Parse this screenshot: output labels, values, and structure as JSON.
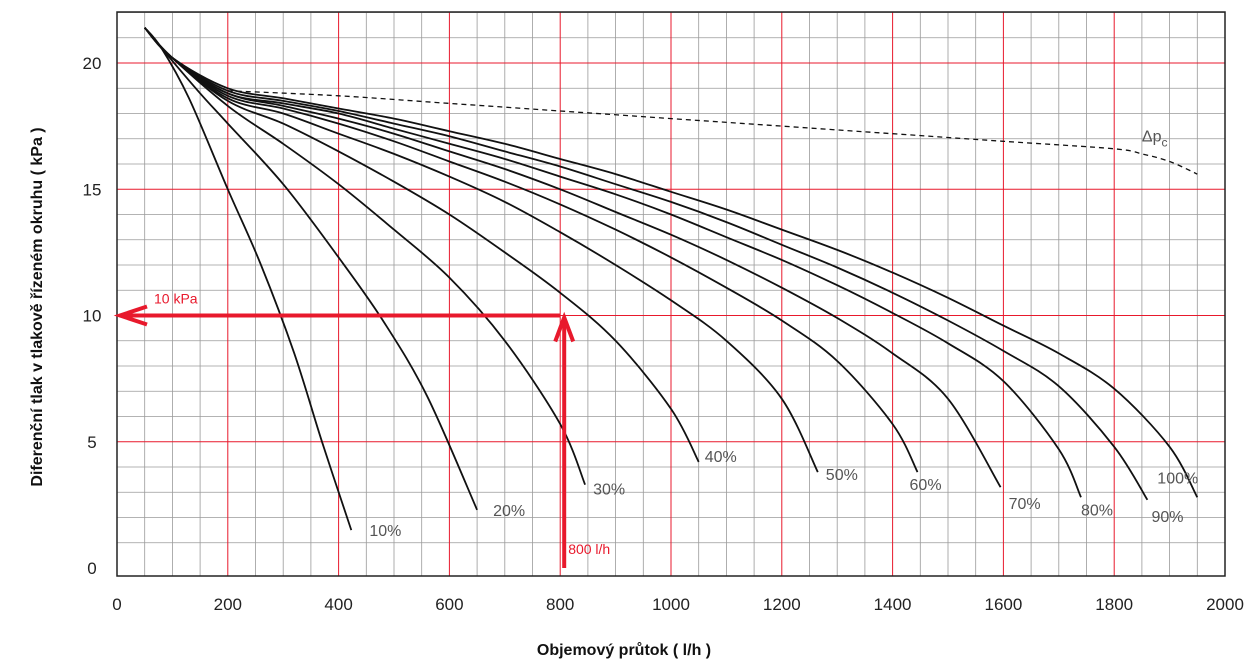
{
  "chart_data": {
    "type": "line",
    "title": "",
    "xlabel": "Objemový průtok ( l/h )",
    "ylabel": "Diferenční tlak v tlakově řízeném okruhu  ( kPa )",
    "xlim": [
      0,
      2000
    ],
    "ylim": [
      0,
      22
    ],
    "x_ticks": [
      "0",
      "200",
      "400",
      "600",
      "800",
      "1000",
      "1200",
      "1400",
      "1600",
      "1800",
      "2000"
    ],
    "y_ticks": [
      "0",
      "5",
      "10",
      "15",
      "20"
    ],
    "grid": true,
    "colors": {
      "curve": "#111111",
      "grid_major": "#e8192c",
      "grid_minor": "#9a9a9a",
      "annotation": "#e8192c"
    },
    "series": [
      {
        "name": "10%",
        "x": [
          50,
          80,
          130,
          200,
          260,
          320,
          370,
          423
        ],
        "y": [
          21.4,
          20.6,
          18.6,
          15.0,
          12.0,
          8.5,
          5.0,
          1.5
        ]
      },
      {
        "name": "20%",
        "x": [
          50,
          80,
          150,
          200,
          300,
          400,
          480,
          560,
          650
        ],
        "y": [
          21.4,
          20.6,
          18.8,
          17.6,
          15.2,
          12.3,
          9.8,
          6.8,
          2.3
        ]
      },
      {
        "name": "30%",
        "x": [
          50,
          90,
          200,
          300,
          400,
          500,
          600,
          700,
          800,
          845
        ],
        "y": [
          21.4,
          20.4,
          18.3,
          16.8,
          15.2,
          13.4,
          11.5,
          9.0,
          5.7,
          3.3
        ]
      },
      {
        "name": "40%",
        "x": [
          50,
          100,
          200,
          300,
          400,
          500,
          600,
          700,
          800,
          900,
          1000,
          1050
        ],
        "y": [
          21.4,
          20.2,
          18.5,
          17.6,
          16.5,
          15.3,
          14.0,
          12.5,
          10.9,
          9.0,
          6.3,
          4.2
        ]
      },
      {
        "name": "50%",
        "x": [
          50,
          100,
          200,
          300,
          400,
          500,
          600,
          700,
          800,
          900,
          1000,
          1100,
          1200,
          1265
        ],
        "y": [
          21.4,
          20.2,
          18.6,
          18.0,
          17.2,
          16.4,
          15.5,
          14.5,
          13.3,
          12.0,
          10.6,
          9.0,
          6.7,
          3.8
        ]
      },
      {
        "name": "60%",
        "x": [
          50,
          100,
          200,
          300,
          400,
          500,
          600,
          700,
          800,
          900,
          1000,
          1100,
          1200,
          1300,
          1400,
          1445
        ],
        "y": [
          21.4,
          20.2,
          18.7,
          18.2,
          17.6,
          16.9,
          16.1,
          15.3,
          14.4,
          13.4,
          12.3,
          11.1,
          9.8,
          8.2,
          5.7,
          3.8
        ]
      },
      {
        "name": "70%",
        "x": [
          50,
          100,
          200,
          300,
          400,
          500,
          600,
          700,
          800,
          900,
          1000,
          1100,
          1200,
          1300,
          1400,
          1500,
          1595
        ],
        "y": [
          21.4,
          20.2,
          18.8,
          18.3,
          17.8,
          17.2,
          16.5,
          15.8,
          15.0,
          14.1,
          13.2,
          12.2,
          11.1,
          9.9,
          8.5,
          6.7,
          3.2
        ]
      },
      {
        "name": "80%",
        "x": [
          50,
          100,
          200,
          300,
          400,
          500,
          600,
          700,
          800,
          900,
          1000,
          1100,
          1200,
          1300,
          1400,
          1500,
          1600,
          1700,
          1740
        ],
        "y": [
          21.4,
          20.2,
          18.8,
          18.4,
          18.0,
          17.4,
          16.8,
          16.2,
          15.5,
          14.8,
          14.0,
          13.1,
          12.2,
          11.2,
          10.1,
          8.9,
          7.4,
          4.7,
          2.8
        ]
      },
      {
        "name": "90%",
        "x": [
          50,
          100,
          200,
          300,
          400,
          500,
          600,
          700,
          800,
          900,
          1000,
          1100,
          1200,
          1300,
          1400,
          1500,
          1600,
          1700,
          1800,
          1860
        ],
        "y": [
          21.4,
          20.2,
          18.9,
          18.5,
          18.1,
          17.6,
          17.1,
          16.5,
          15.9,
          15.2,
          14.5,
          13.7,
          12.8,
          11.9,
          10.9,
          9.8,
          8.6,
          7.2,
          4.8,
          2.7
        ]
      },
      {
        "name": "100%",
        "x": [
          50,
          100,
          200,
          300,
          400,
          500,
          600,
          700,
          800,
          900,
          1000,
          1100,
          1200,
          1300,
          1400,
          1500,
          1600,
          1700,
          1800,
          1900,
          1950
        ],
        "y": [
          21.4,
          20.2,
          19.0,
          18.6,
          18.2,
          17.8,
          17.3,
          16.8,
          16.2,
          15.6,
          14.9,
          14.2,
          13.4,
          12.6,
          11.7,
          10.7,
          9.6,
          8.5,
          7.1,
          4.8,
          2.8
        ]
      }
    ],
    "dashed_series": {
      "name": "Δp",
      "subscript": "c",
      "x": [
        200,
        400,
        600,
        800,
        1000,
        1200,
        1400,
        1600,
        1800,
        1850,
        1900,
        1950
      ],
      "y": [
        18.9,
        18.7,
        18.4,
        18.1,
        17.8,
        17.5,
        17.2,
        16.9,
        16.6,
        16.4,
        16.1,
        15.6
      ]
    },
    "annotations": [
      {
        "text": "10 kPa",
        "type": "arrow-left",
        "from": [
          800,
          10
        ],
        "to": [
          0,
          10
        ]
      },
      {
        "text": "800 l/h",
        "type": "arrow-up",
        "from": [
          800,
          0
        ],
        "to": [
          800,
          10
        ]
      }
    ]
  }
}
